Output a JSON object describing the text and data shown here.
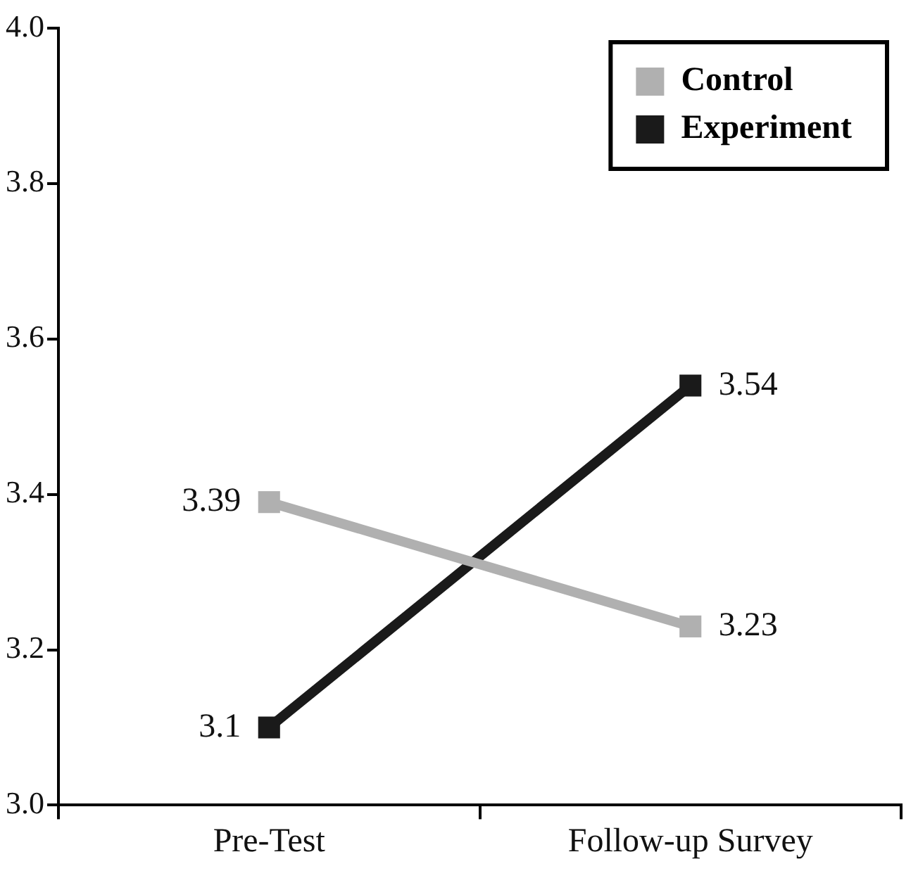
{
  "chart_data": {
    "type": "line",
    "categories": [
      "Pre-Test",
      "Follow-up Survey"
    ],
    "series": [
      {
        "name": "Control",
        "color": "#b0b0b0",
        "values": [
          3.39,
          3.23
        ]
      },
      {
        "name": "Experiment",
        "color": "#1a1a1a",
        "values": [
          3.1,
          3.54
        ]
      }
    ],
    "ylim": [
      3.0,
      4.0
    ],
    "yticks": [
      {
        "value": 3.0,
        "label": "3.0"
      },
      {
        "value": 3.2,
        "label": "3.2"
      },
      {
        "value": 3.4,
        "label": "3.4"
      },
      {
        "value": 3.6,
        "label": "3.6"
      },
      {
        "value": 3.8,
        "label": "3.8"
      },
      {
        "value": 4.0,
        "label": "4.0"
      }
    ],
    "grid": false,
    "legend": "top right",
    "marker": "square",
    "line_style": "solid",
    "data_labels": true
  }
}
